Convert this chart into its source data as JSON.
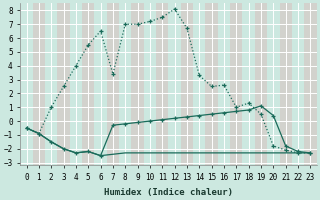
{
  "xlabel": "Humidex (Indice chaleur)",
  "bg_color": "#cce8e0",
  "grid_color": "#ffffff",
  "grid_minor_color": "#dbb8b8",
  "line_color": "#1a6b5a",
  "xlim": [
    -0.5,
    23.5
  ],
  "ylim": [
    -3.2,
    8.5
  ],
  "xticks": [
    0,
    1,
    2,
    3,
    4,
    5,
    6,
    7,
    8,
    9,
    10,
    11,
    12,
    13,
    14,
    15,
    16,
    17,
    18,
    19,
    20,
    21,
    22,
    23
  ],
  "yticks": [
    -3,
    -2,
    -1,
    0,
    1,
    2,
    3,
    4,
    5,
    6,
    7,
    8
  ],
  "line_main_x": [
    0,
    1,
    2,
    3,
    4,
    5,
    6,
    7,
    8,
    9,
    10,
    11,
    12,
    13,
    14,
    15,
    16,
    17,
    18,
    19,
    20,
    21,
    22,
    23
  ],
  "line_main_y": [
    -0.5,
    -0.9,
    1.0,
    2.5,
    4.0,
    5.5,
    6.5,
    3.4,
    7.0,
    7.0,
    7.2,
    7.5,
    8.1,
    6.7,
    3.3,
    2.5,
    2.6,
    1.0,
    1.3,
    0.5,
    -1.8,
    -2.1,
    -2.3,
    -2.3
  ],
  "line_mid_x": [
    0,
    1,
    2,
    3,
    4,
    5,
    6,
    7,
    8,
    9,
    10,
    11,
    12,
    13,
    14,
    15,
    16,
    17,
    18,
    19,
    20,
    21,
    22,
    23
  ],
  "line_mid_y": [
    -0.5,
    -0.9,
    -1.5,
    -2.0,
    -2.3,
    -2.2,
    -2.5,
    -0.3,
    -0.2,
    -0.1,
    0.0,
    0.1,
    0.2,
    0.3,
    0.4,
    0.5,
    0.6,
    0.7,
    0.8,
    1.1,
    0.4,
    -1.8,
    -2.2,
    -2.3
  ],
  "line_flat_x": [
    0,
    1,
    2,
    3,
    4,
    5,
    6,
    7,
    8,
    9,
    10,
    11,
    12,
    13,
    14,
    15,
    16,
    17,
    18,
    19,
    20,
    21,
    22,
    23
  ],
  "line_flat_y": [
    -0.5,
    -0.9,
    -1.5,
    -2.0,
    -2.3,
    -2.2,
    -2.5,
    -2.4,
    -2.3,
    -2.3,
    -2.3,
    -2.3,
    -2.3,
    -2.3,
    -2.3,
    -2.3,
    -2.3,
    -2.3,
    -2.3,
    -2.3,
    -2.3,
    -2.3,
    -2.3,
    -2.3
  ]
}
